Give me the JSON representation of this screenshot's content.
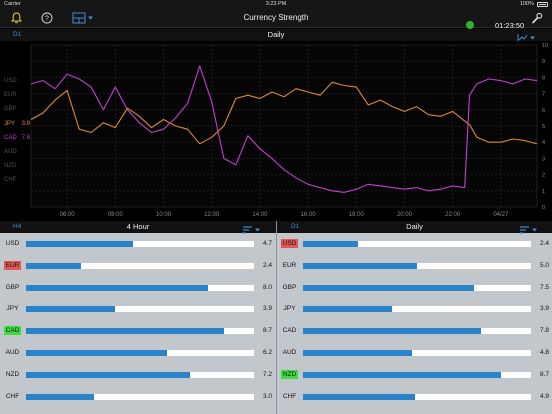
{
  "status_bar": {
    "carrier": "Carrier",
    "time": "3:23 PM",
    "battery": "100%"
  },
  "toolbar": {
    "title": "Currency Strength",
    "clock": "01:23:50",
    "connection_color": "#2db52d"
  },
  "main_chart": {
    "timeframe_label": "D1",
    "title": "Daily",
    "legend": [
      {
        "currency": "USD",
        "value": "",
        "color": "#505050"
      },
      {
        "currency": "EUR",
        "value": "",
        "color": "#505050"
      },
      {
        "currency": "GBP",
        "value": "",
        "color": "#505050"
      },
      {
        "currency": "JPY",
        "value": "3.9",
        "color": "#e0892f"
      },
      {
        "currency": "CAD",
        "value": "7.8",
        "color": "#c43fd0"
      },
      {
        "currency": "AUD",
        "value": "",
        "color": "#505050"
      },
      {
        "currency": "NZD",
        "value": "",
        "color": "#505050"
      },
      {
        "currency": "CHF",
        "value": "",
        "color": "#505050"
      }
    ]
  },
  "chart_data": {
    "type": "line",
    "x_tick_labels": [
      "06:00",
      "08:00",
      "10:00",
      "12:00",
      "14:00",
      "16:00",
      "18:00",
      "20:00",
      "22:00",
      "04/27"
    ],
    "x_tick_positions": [
      1.5,
      3.5,
      5.5,
      7.5,
      9.5,
      11.5,
      13.5,
      15.5,
      17.5,
      19.5
    ],
    "xlim": [
      0,
      21
    ],
    "ylim": [
      0,
      10
    ],
    "y_ticks": [
      0,
      1,
      2,
      3,
      4,
      5,
      6,
      7,
      8,
      9,
      10
    ],
    "grid": true,
    "series": [
      {
        "name": "JPY",
        "color": "#e0892f",
        "x": [
          0,
          0.5,
          1,
          1.5,
          2,
          2.5,
          3,
          3.5,
          4,
          4.5,
          5,
          5.5,
          6,
          6.5,
          7,
          7.5,
          8,
          8.5,
          9,
          9.5,
          10,
          10.5,
          11,
          11.5,
          12,
          12.5,
          13,
          13.5,
          14,
          14.5,
          15,
          15.5,
          16,
          16.5,
          17,
          17.5,
          18,
          18.2,
          18.5,
          19,
          19.5,
          20,
          20.5,
          21
        ],
        "values": [
          5.4,
          5.8,
          6.6,
          7.2,
          4.8,
          4.6,
          5.2,
          4.9,
          6.1,
          5.6,
          4.9,
          5.4,
          5.0,
          4.8,
          3.9,
          4.3,
          5.0,
          6.7,
          6.9,
          6.7,
          7.1,
          6.8,
          7.3,
          7.1,
          6.9,
          7.7,
          7.5,
          7.4,
          6.3,
          6.6,
          6.2,
          5.9,
          6.2,
          5.7,
          5.6,
          5.9,
          5.3,
          5.1,
          4.3,
          4.0,
          4.0,
          4.2,
          4.1,
          3.9
        ]
      },
      {
        "name": "CAD",
        "color": "#c43fd0",
        "x": [
          0,
          0.5,
          1,
          1.5,
          2,
          2.5,
          3,
          3.5,
          4,
          4.5,
          5,
          5.5,
          6,
          6.5,
          7,
          7.5,
          8,
          8.5,
          9,
          9.5,
          10,
          10.5,
          11,
          11.5,
          12,
          12.5,
          13,
          13.5,
          14,
          14.5,
          15,
          15.5,
          16,
          16.5,
          17,
          17.5,
          18,
          18.2,
          18.5,
          19,
          19.5,
          20,
          20.5,
          21
        ],
        "values": [
          7.6,
          7.8,
          7.3,
          8.2,
          7.9,
          7.4,
          6.0,
          7.4,
          6.0,
          5.2,
          4.6,
          4.8,
          5.5,
          6.4,
          8.7,
          6.5,
          3.0,
          2.6,
          4.4,
          3.6,
          3.0,
          2.3,
          1.8,
          1.4,
          1.2,
          1.0,
          0.9,
          1.1,
          1.4,
          1.3,
          1.2,
          1.1,
          1.2,
          1.0,
          1.1,
          1.3,
          1.2,
          6.9,
          7.6,
          7.9,
          7.8,
          7.6,
          7.9,
          7.8
        ]
      }
    ]
  },
  "panel_4h": {
    "timeframe_label": "H4",
    "title": "4 Hour",
    "rows": [
      {
        "currency": "USD",
        "value": "4.7",
        "fill": 0.47,
        "highlight": ""
      },
      {
        "currency": "EUR",
        "value": "2.4",
        "fill": 0.24,
        "highlight": "red"
      },
      {
        "currency": "GBP",
        "value": "8.0",
        "fill": 0.8,
        "highlight": ""
      },
      {
        "currency": "JPY",
        "value": "3.9",
        "fill": 0.39,
        "highlight": ""
      },
      {
        "currency": "CAD",
        "value": "8.7",
        "fill": 0.87,
        "highlight": "green"
      },
      {
        "currency": "AUD",
        "value": "6.2",
        "fill": 0.62,
        "highlight": ""
      },
      {
        "currency": "NZD",
        "value": "7.2",
        "fill": 0.72,
        "highlight": ""
      },
      {
        "currency": "CHF",
        "value": "3.0",
        "fill": 0.3,
        "highlight": ""
      }
    ]
  },
  "panel_daily": {
    "timeframe_label": "D1",
    "title": "Daily",
    "rows": [
      {
        "currency": "USD",
        "value": "2.4",
        "fill": 0.24,
        "highlight": "red"
      },
      {
        "currency": "EUR",
        "value": "5.0",
        "fill": 0.5,
        "highlight": ""
      },
      {
        "currency": "GBP",
        "value": "7.5",
        "fill": 0.75,
        "highlight": ""
      },
      {
        "currency": "JPY",
        "value": "3.9",
        "fill": 0.39,
        "highlight": ""
      },
      {
        "currency": "CAD",
        "value": "7.8",
        "fill": 0.78,
        "highlight": ""
      },
      {
        "currency": "AUD",
        "value": "4.8",
        "fill": 0.48,
        "highlight": ""
      },
      {
        "currency": "NZD",
        "value": "8.7",
        "fill": 0.87,
        "highlight": "green"
      },
      {
        "currency": "CHF",
        "value": "4.9",
        "fill": 0.49,
        "highlight": ""
      }
    ]
  }
}
